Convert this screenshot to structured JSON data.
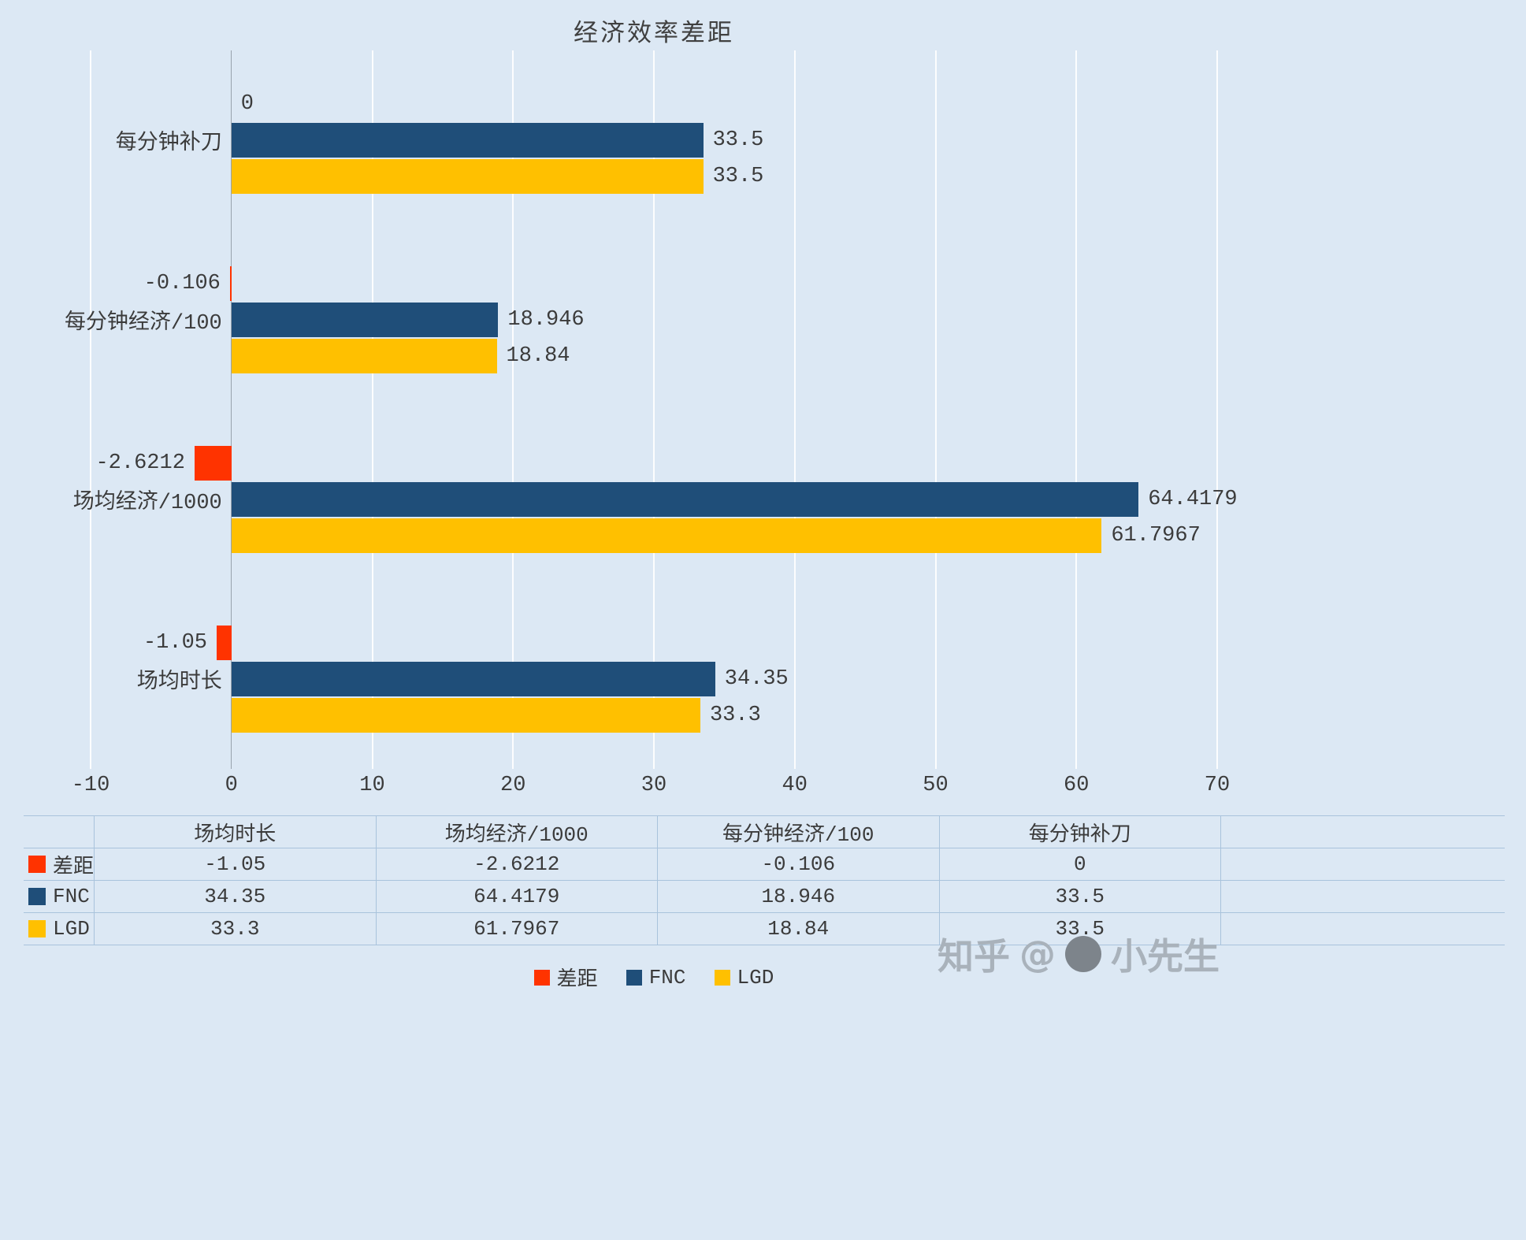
{
  "title": "经济效率差距",
  "chart_data": {
    "type": "bar",
    "orientation": "horizontal",
    "title": "经济效率差距",
    "categories": [
      "场均时长",
      "场均经济/1000",
      "每分钟经济/100",
      "每分钟补刀"
    ],
    "category_display_order_top_to_bottom": [
      "每分钟补刀",
      "每分钟经济/100",
      "场均经济/1000",
      "场均时长"
    ],
    "series": [
      {
        "name": "差距",
        "color": "#ff3300",
        "values": [
          -1.05,
          -2.6212,
          -0.106,
          0
        ],
        "labels": [
          "-1.05",
          "-2.6212",
          "-0.106",
          "0"
        ]
      },
      {
        "name": "FNC",
        "color": "#1f4e79",
        "values": [
          34.35,
          64.4179,
          18.946,
          33.5
        ],
        "labels": [
          "34.35",
          "64.4179",
          "18.946",
          "33.5"
        ]
      },
      {
        "name": "LGD",
        "color": "#ffc000",
        "values": [
          33.3,
          61.7967,
          18.84,
          33.5
        ],
        "labels": [
          "33.3",
          "61.7967",
          "18.84",
          "33.5"
        ]
      }
    ],
    "xlim": [
      -10,
      70
    ],
    "xticks": [
      -10,
      0,
      10,
      20,
      30,
      40,
      50,
      60,
      70
    ],
    "xtick_labels": [
      "-10",
      "0",
      "10",
      "20",
      "30",
      "40",
      "50",
      "60",
      "70"
    ],
    "grid": true,
    "legend_position": "bottom",
    "background_color": "#dce8f4"
  },
  "watermark": {
    "site": "知乎",
    "at": "@",
    "username": "小先生"
  }
}
